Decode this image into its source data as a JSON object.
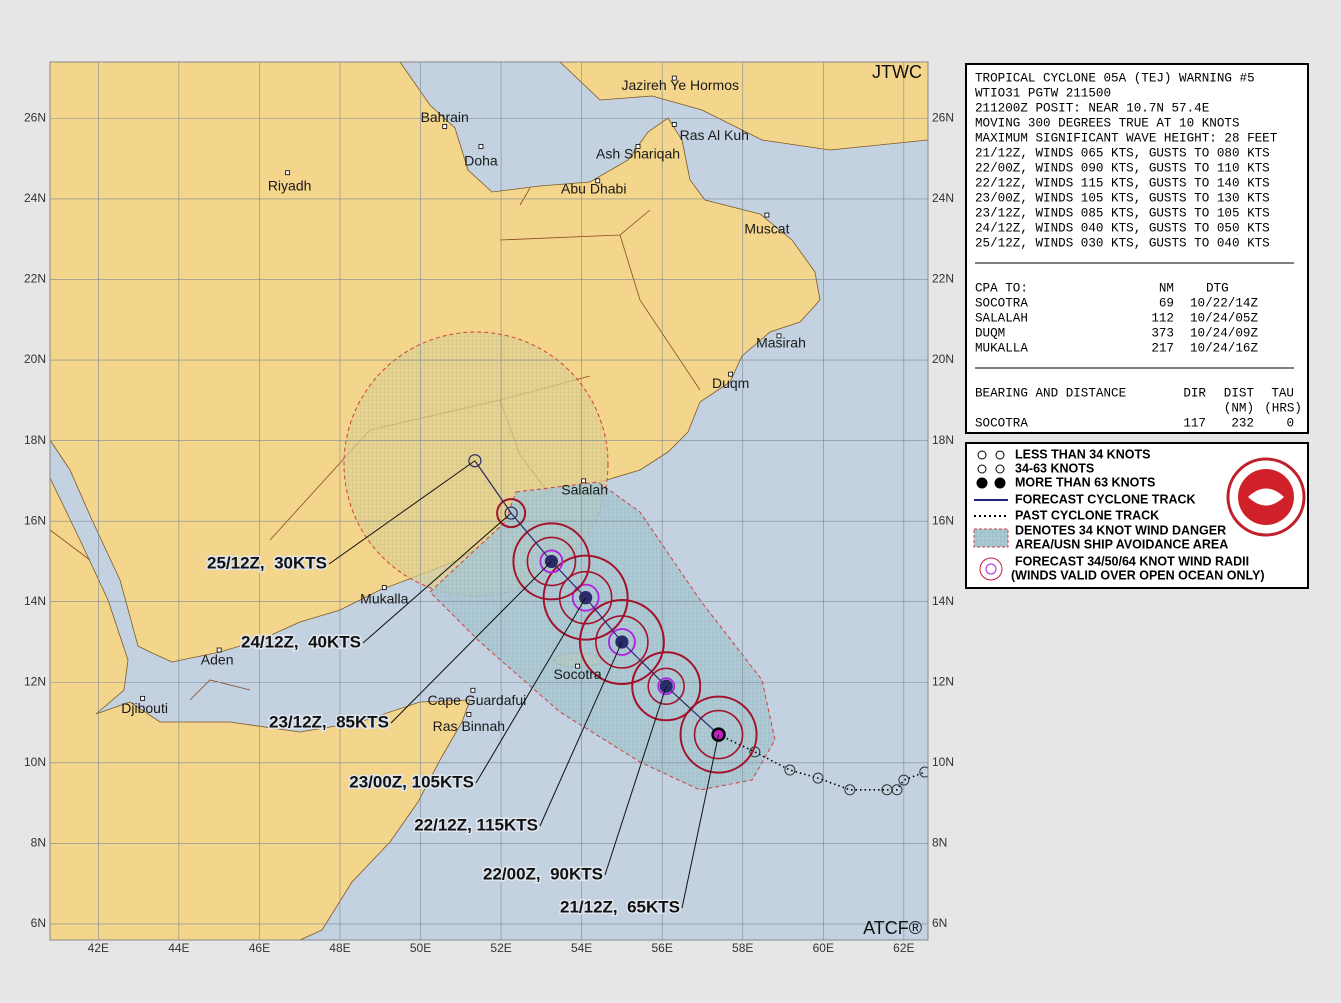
{
  "map": {
    "lon_range": [
      40.8,
      62.6
    ],
    "lat_range": [
      5.6,
      27.4
    ],
    "lon_ticks": [
      {
        "value": 42,
        "label": "42E"
      },
      {
        "value": 44,
        "label": "44E"
      },
      {
        "value": 46,
        "label": "46E"
      },
      {
        "value": 48,
        "label": "48E"
      },
      {
        "value": 50,
        "label": "50E"
      },
      {
        "value": 52,
        "label": "52E"
      },
      {
        "value": 54,
        "label": "54E"
      },
      {
        "value": 56,
        "label": "56E"
      },
      {
        "value": 58,
        "label": "58E"
      },
      {
        "value": 60,
        "label": "60E"
      },
      {
        "value": 62,
        "label": "62E"
      }
    ],
    "lat_ticks": [
      {
        "value": 6,
        "label": "6N"
      },
      {
        "value": 8,
        "label": "8N"
      },
      {
        "value": 10,
        "label": "10N"
      },
      {
        "value": 12,
        "label": "12N"
      },
      {
        "value": 14,
        "label": "14N"
      },
      {
        "value": 16,
        "label": "16N"
      },
      {
        "value": 18,
        "label": "18N"
      },
      {
        "value": 20,
        "label": "20N"
      },
      {
        "value": 22,
        "label": "22N"
      },
      {
        "value": 24,
        "label": "24N"
      },
      {
        "value": 26,
        "label": "26N"
      }
    ],
    "agency": "JTWC",
    "credit": "ATCF®",
    "places": [
      {
        "name": "Jazireh Ye Hormos",
        "lon": 56.3,
        "lat": 27.0
      },
      {
        "name": "Bahrain",
        "lon": 50.6,
        "lat": 25.8
      },
      {
        "name": "Doha",
        "lon": 51.5,
        "lat": 25.3
      },
      {
        "name": "Ras Al Kuh",
        "lon": 56.3,
        "lat": 25.85
      },
      {
        "name": "Ash Shariqah",
        "lon": 55.4,
        "lat": 25.3
      },
      {
        "name": "Abu Dhabi",
        "lon": 54.4,
        "lat": 24.45
      },
      {
        "name": "Riyadh",
        "lon": 46.7,
        "lat": 24.65
      },
      {
        "name": "Muscat",
        "lon": 58.6,
        "lat": 23.6
      },
      {
        "name": "Masirah",
        "lon": 58.9,
        "lat": 20.6
      },
      {
        "name": "Duqm",
        "lon": 57.7,
        "lat": 19.65
      },
      {
        "name": "Salalah",
        "lon": 54.05,
        "lat": 17.0
      },
      {
        "name": "Mukalla",
        "lon": 49.1,
        "lat": 14.35
      },
      {
        "name": "Aden",
        "lon": 45.0,
        "lat": 12.8
      },
      {
        "name": "Djibouti",
        "lon": 43.1,
        "lat": 11.6
      },
      {
        "name": "Cape Guardafui",
        "lon": 51.3,
        "lat": 11.8
      },
      {
        "name": "Ras Binnah",
        "lon": 51.2,
        "lat": 11.2
      },
      {
        "name": "Socotra",
        "lon": 53.9,
        "lat": 12.4
      }
    ],
    "forecast_track": [
      {
        "label": "21/12Z,  65KTS",
        "lon": 57.4,
        "lat": 10.7
      },
      {
        "label": "22/00Z,  90KTS",
        "lon": 56.1,
        "lat": 11.9
      },
      {
        "label": "22/12Z, 115KTS",
        "lon": 55.0,
        "lat": 13.0
      },
      {
        "label": "23/00Z, 105KTS",
        "lon": 54.1,
        "lat": 14.1
      },
      {
        "label": "23/12Z,  85KTS",
        "lon": 53.25,
        "lat": 15.0
      },
      {
        "label": "24/12Z,  40KTS",
        "lon": 52.25,
        "lat": 16.2
      },
      {
        "label": "25/12Z,  30KTS",
        "lon": 51.35,
        "lat": 17.5
      }
    ],
    "past_track": [
      {
        "lon": 58.3,
        "lat": 10.27
      },
      {
        "lon": 59.17,
        "lat": 9.82
      },
      {
        "lon": 59.87,
        "lat": 9.62
      },
      {
        "lon": 60.66,
        "lat": 9.33
      },
      {
        "lon": 61.58,
        "lat": 9.33
      },
      {
        "lon": 61.83,
        "lat": 9.33
      },
      {
        "lon": 62.0,
        "lat": 9.57
      },
      {
        "lon": 62.52,
        "lat": 9.77
      }
    ]
  },
  "warning": {
    "lines": [
      "TROPICAL CYCLONE 05A (TEJ) WARNING #5",
      "WTIO31 PGTW 211500",
      "211200Z POSIT: NEAR 10.7N 57.4E",
      "MOVING 300 DEGREES TRUE AT 10 KNOTS",
      "MAXIMUM SIGNIFICANT WAVE HEIGHT: 28 FEET",
      "21/12Z, WINDS 065 KTS, GUSTS TO 080 KTS",
      "22/00Z, WINDS 090 KTS, GUSTS TO 110 KTS",
      "22/12Z, WINDS 115 KTS, GUSTS TO 140 KTS",
      "23/00Z, WINDS 105 KTS, GUSTS TO 130 KTS",
      "23/12Z, WINDS 085 KTS, GUSTS TO 105 KTS",
      "24/12Z, WINDS 040 KTS, GUSTS TO 050 KTS",
      "25/12Z, WINDS 030 KTS, GUSTS TO 040 KTS"
    ],
    "cpa": {
      "header": [
        "CPA TO:",
        "NM",
        "DTG"
      ],
      "rows": [
        [
          "SOCOTRA",
          "69",
          "10/22/14Z"
        ],
        [
          "SALALAH",
          "112",
          "10/24/05Z"
        ],
        [
          "DUQM",
          "373",
          "10/24/09Z"
        ],
        [
          "MUKALLA",
          "217",
          "10/24/16Z"
        ]
      ]
    },
    "bearing": {
      "header": [
        "BEARING AND DISTANCE",
        "DIR",
        "DIST",
        "TAU"
      ],
      "units": [
        "(NM)",
        "(HRS)"
      ],
      "rows": [
        [
          "SOCOTRA",
          "117",
          "232",
          "0"
        ]
      ]
    }
  },
  "legend": {
    "items": [
      "LESS THAN 34 KNOTS",
      "34-63 KNOTS",
      "MORE THAN 63 KNOTS",
      "FORECAST CYCLONE TRACK",
      "PAST CYCLONE TRACK",
      "DENOTES 34 KNOT WIND DANGER",
      "AREA/USN SHIP AVOIDANCE AREA",
      "FORECAST 34/50/64 KNOT WIND RADII",
      "(WINDS VALID OVER OPEN OCEAN ONLY)"
    ]
  }
}
